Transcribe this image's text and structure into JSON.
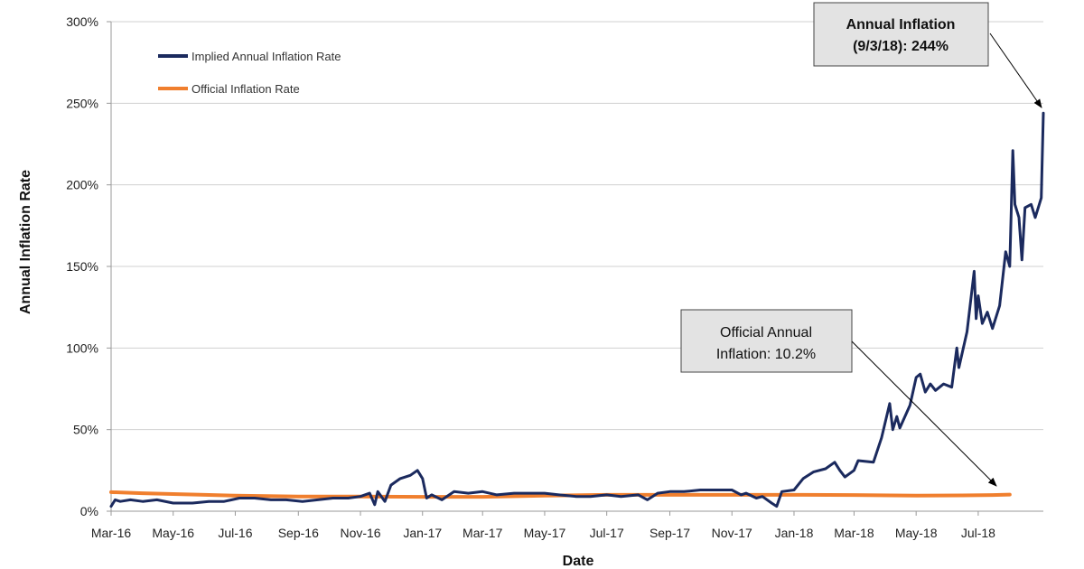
{
  "chart_data": {
    "type": "line",
    "xlabel": "Date",
    "ylabel": "Annual Inflation Rate",
    "ylim": [
      0,
      300
    ],
    "yticks": [
      "0%",
      "50%",
      "100%",
      "150%",
      "200%",
      "250%",
      "300%"
    ],
    "xticks": [
      "Mar-16",
      "May-16",
      "Jul-16",
      "Sep-16",
      "Nov-16",
      "Jan-17",
      "Mar-17",
      "May-17",
      "Jul-17",
      "Sep-17",
      "Nov-17",
      "Jan-18",
      "Mar-18",
      "May-18",
      "Jul-18"
    ],
    "grid": "horizontal",
    "legend_position": "top-left",
    "series": [
      {
        "name": "Implied Annual Inflation Rate",
        "color": "#1b2a5e",
        "points": [
          [
            "2016-03-01",
            3
          ],
          [
            "2016-03-05",
            7
          ],
          [
            "2016-03-10",
            6
          ],
          [
            "2016-03-20",
            7
          ],
          [
            "2016-04-01",
            6
          ],
          [
            "2016-04-15",
            7
          ],
          [
            "2016-05-01",
            5
          ],
          [
            "2016-05-20",
            5
          ],
          [
            "2016-06-05",
            6
          ],
          [
            "2016-06-20",
            6
          ],
          [
            "2016-07-05",
            8
          ],
          [
            "2016-07-20",
            8
          ],
          [
            "2016-08-05",
            7
          ],
          [
            "2016-08-20",
            7
          ],
          [
            "2016-09-05",
            6
          ],
          [
            "2016-09-20",
            7
          ],
          [
            "2016-10-05",
            8
          ],
          [
            "2016-10-20",
            8
          ],
          [
            "2016-11-01",
            9
          ],
          [
            "2016-11-10",
            11
          ],
          [
            "2016-11-15",
            4
          ],
          [
            "2016-11-18",
            12
          ],
          [
            "2016-11-25",
            6
          ],
          [
            "2016-12-01",
            16
          ],
          [
            "2016-12-10",
            20
          ],
          [
            "2016-12-20",
            22
          ],
          [
            "2016-12-27",
            25
          ],
          [
            "2017-01-01",
            20
          ],
          [
            "2017-01-05",
            8
          ],
          [
            "2017-01-10",
            10
          ],
          [
            "2017-01-20",
            7
          ],
          [
            "2017-02-01",
            12
          ],
          [
            "2017-02-15",
            11
          ],
          [
            "2017-03-01",
            12
          ],
          [
            "2017-03-15",
            10
          ],
          [
            "2017-04-01",
            11
          ],
          [
            "2017-04-15",
            11
          ],
          [
            "2017-05-01",
            11
          ],
          [
            "2017-05-15",
            10
          ],
          [
            "2017-06-01",
            9
          ],
          [
            "2017-06-15",
            9
          ],
          [
            "2017-07-01",
            10
          ],
          [
            "2017-07-15",
            9
          ],
          [
            "2017-08-01",
            10
          ],
          [
            "2017-08-10",
            7
          ],
          [
            "2017-08-20",
            11
          ],
          [
            "2017-09-01",
            12
          ],
          [
            "2017-09-15",
            12
          ],
          [
            "2017-10-01",
            13
          ],
          [
            "2017-10-15",
            13
          ],
          [
            "2017-11-01",
            13
          ],
          [
            "2017-11-10",
            10
          ],
          [
            "2017-11-15",
            11
          ],
          [
            "2017-11-25",
            8
          ],
          [
            "2017-12-01",
            9
          ],
          [
            "2017-12-10",
            5
          ],
          [
            "2017-12-15",
            3
          ],
          [
            "2017-12-20",
            12
          ],
          [
            "2018-01-01",
            13
          ],
          [
            "2018-01-10",
            20
          ],
          [
            "2018-01-20",
            24
          ],
          [
            "2018-02-01",
            26
          ],
          [
            "2018-02-10",
            30
          ],
          [
            "2018-02-15",
            25
          ],
          [
            "2018-02-20",
            21
          ],
          [
            "2018-03-01",
            25
          ],
          [
            "2018-03-05",
            31
          ],
          [
            "2018-03-20",
            30
          ],
          [
            "2018-03-28",
            45
          ],
          [
            "2018-04-05",
            66
          ],
          [
            "2018-04-08",
            50
          ],
          [
            "2018-04-12",
            58
          ],
          [
            "2018-04-15",
            51
          ],
          [
            "2018-04-25",
            65
          ],
          [
            "2018-05-01",
            82
          ],
          [
            "2018-05-05",
            84
          ],
          [
            "2018-05-10",
            73
          ],
          [
            "2018-05-15",
            78
          ],
          [
            "2018-05-20",
            74
          ],
          [
            "2018-05-28",
            78
          ],
          [
            "2018-06-05",
            76
          ],
          [
            "2018-06-10",
            100
          ],
          [
            "2018-06-12",
            88
          ],
          [
            "2018-06-20",
            110
          ],
          [
            "2018-06-27",
            147
          ],
          [
            "2018-06-29",
            118
          ],
          [
            "2018-07-01",
            132
          ],
          [
            "2018-07-05",
            115
          ],
          [
            "2018-07-10",
            122
          ],
          [
            "2018-07-15",
            112
          ],
          [
            "2018-07-22",
            126
          ],
          [
            "2018-07-28",
            159
          ],
          [
            "2018-08-01",
            150
          ],
          [
            "2018-08-04",
            221
          ],
          [
            "2018-08-06",
            188
          ],
          [
            "2018-08-10",
            180
          ],
          [
            "2018-08-13",
            154
          ],
          [
            "2018-08-16",
            186
          ],
          [
            "2018-08-22",
            188
          ],
          [
            "2018-08-26",
            180
          ],
          [
            "2018-08-30",
            188
          ],
          [
            "2018-09-01",
            192
          ],
          [
            "2018-09-03",
            244
          ]
        ]
      },
      {
        "name": "Official Inflation Rate",
        "color": "#f07f2e",
        "points": [
          [
            "2016-03-01",
            11.7
          ],
          [
            "2016-04-01",
            11
          ],
          [
            "2016-05-01",
            10.5
          ],
          [
            "2016-06-01",
            10
          ],
          [
            "2016-07-01",
            9.5
          ],
          [
            "2016-09-01",
            9
          ],
          [
            "2016-11-01",
            9
          ],
          [
            "2017-01-01",
            8.8
          ],
          [
            "2017-03-01",
            8.8
          ],
          [
            "2017-05-01",
            9.5
          ],
          [
            "2017-07-01",
            10
          ],
          [
            "2017-09-01",
            10
          ],
          [
            "2017-11-01",
            10
          ],
          [
            "2018-01-01",
            10
          ],
          [
            "2018-03-01",
            9.9
          ],
          [
            "2018-05-01",
            9.5
          ],
          [
            "2018-06-15",
            9.7
          ],
          [
            "2018-07-15",
            9.9
          ],
          [
            "2018-08-01",
            10.2
          ]
        ]
      }
    ],
    "annotations": [
      {
        "lines": [
          "Annual Inflation",
          "(9/3/18): 244%"
        ],
        "bold": true,
        "points_to": [
          "2018-09-03",
          244
        ]
      },
      {
        "lines": [
          "Official Annual",
          "Inflation: 10.2%"
        ],
        "bold": false,
        "points_to": [
          "2018-08-01",
          10.2
        ]
      }
    ]
  }
}
